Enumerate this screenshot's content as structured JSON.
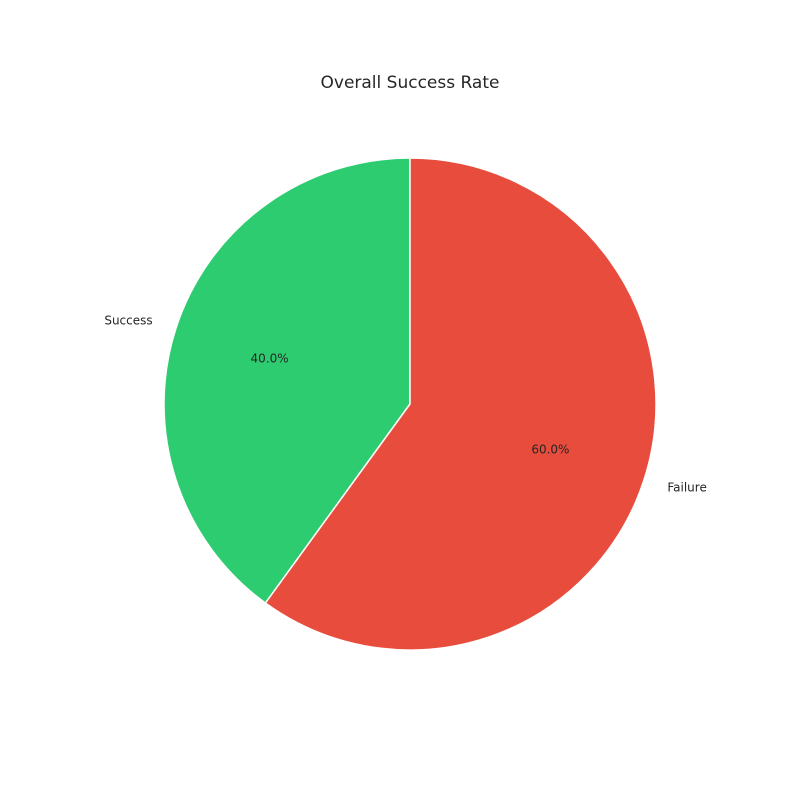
{
  "chart_data": {
    "type": "pie",
    "title": "Overall Success Rate",
    "start_angle_deg": 90,
    "direction": "counterclockwise",
    "slices": [
      {
        "label": "Success",
        "value": 40.0,
        "pct_label": "40.0%",
        "color": "#2ecc71"
      },
      {
        "label": "Failure",
        "value": 60.0,
        "pct_label": "60.0%",
        "color": "#e74c3c"
      }
    ]
  }
}
